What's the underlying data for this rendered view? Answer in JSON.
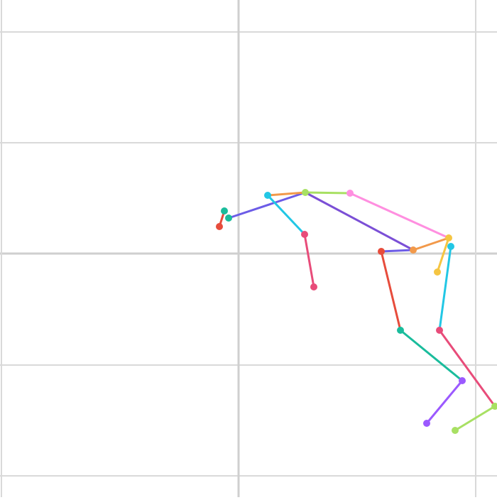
{
  "scene": {
    "background": "#ffffff",
    "grid_color": "#d9d9d9",
    "grid_major_color": "#cfcfcf"
  },
  "figure": {
    "keypoints": [
      {
        "name": "head-top-left",
        "color": "#e74c3c"
      },
      {
        "name": "neck-left",
        "color": "#1abc9c"
      },
      {
        "name": "neck-right",
        "color": "#1abc9c"
      },
      {
        "name": "shoulder-left-a",
        "color": "#22c7e5"
      },
      {
        "name": "shoulder-center",
        "color": "#a8e063"
      },
      {
        "name": "shoulder-right-a",
        "color": "#ff8fe0"
      },
      {
        "name": "elbow-left",
        "color": "#e84c7a"
      },
      {
        "name": "wrist-left",
        "color": "#e84c7a"
      },
      {
        "name": "hip-center",
        "color": "#e74c3c"
      },
      {
        "name": "hip-right-a",
        "color": "#f2994a"
      },
      {
        "name": "hip-right-b",
        "color": "#22c7e5"
      },
      {
        "name": "pelvis-top",
        "color": "#f5c542"
      },
      {
        "name": "thigh-right-end",
        "color": "#f5c542"
      },
      {
        "name": "knee-left",
        "color": "#1abc9c"
      },
      {
        "name": "knee-right",
        "color": "#e84c7a"
      },
      {
        "name": "ankle-left",
        "color": "#9b59ff"
      },
      {
        "name": "foot-left",
        "color": "#9b59ff"
      },
      {
        "name": "ankle-right",
        "color": "#a8e063"
      },
      {
        "name": "foot-right",
        "color": "#a8e063"
      }
    ],
    "bones": [
      {
        "from": "head-top-left",
        "to": "neck-left",
        "color": "#e74c3c"
      },
      {
        "from": "neck-right",
        "to": "shoulder-center",
        "color": "#6c5ce7"
      },
      {
        "from": "shoulder-left-a",
        "to": "shoulder-center",
        "color": "#f2994a"
      },
      {
        "from": "shoulder-center",
        "to": "shoulder-right-a",
        "color": "#a8e063"
      },
      {
        "from": "shoulder-left-a",
        "to": "elbow-left",
        "color": "#22c7e5"
      },
      {
        "from": "elbow-left",
        "to": "wrist-left",
        "color": "#e84c7a"
      },
      {
        "from": "shoulder-center",
        "to": "hip-right-a",
        "color": "#7b4fd6"
      },
      {
        "from": "shoulder-right-a",
        "to": "pelvis-top",
        "color": "#ff8fe0"
      },
      {
        "from": "hip-center",
        "to": "hip-right-a",
        "color": "#6c5ce7"
      },
      {
        "from": "hip-right-a",
        "to": "pelvis-top",
        "color": "#f2994a"
      },
      {
        "from": "pelvis-top",
        "to": "thigh-right-end",
        "color": "#f5c542"
      },
      {
        "from": "hip-center",
        "to": "knee-left",
        "color": "#e74c3c"
      },
      {
        "from": "hip-right-b",
        "to": "knee-right",
        "color": "#22c7e5"
      },
      {
        "from": "knee-left",
        "to": "ankle-left",
        "color": "#1abc9c"
      },
      {
        "from": "ankle-left",
        "to": "foot-left",
        "color": "#9b59ff"
      },
      {
        "from": "knee-right",
        "to": "ankle-right",
        "color": "#e84c7a"
      },
      {
        "from": "ankle-right",
        "to": "foot-right",
        "color": "#a8e063"
      }
    ]
  }
}
